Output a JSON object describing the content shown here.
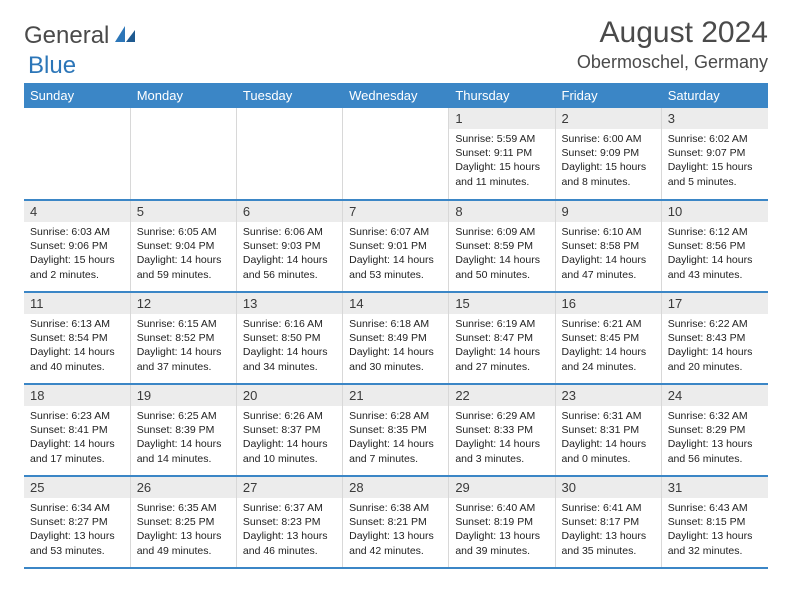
{
  "logo": {
    "text_a": "General",
    "text_b": "Blue"
  },
  "title": "August 2024",
  "location": "Obermoschel, Germany",
  "colors": {
    "header_bg": "#3b86c6",
    "header_text": "#ffffff",
    "day_num_bg": "#ececec",
    "row_border": "#3b86c6",
    "cell_border": "#d8d8d8",
    "logo_gray": "#4a4a4a",
    "logo_blue": "#2c76b8"
  },
  "weekdays": [
    "Sunday",
    "Monday",
    "Tuesday",
    "Wednesday",
    "Thursday",
    "Friday",
    "Saturday"
  ],
  "weeks": [
    [
      null,
      null,
      null,
      null,
      {
        "n": "1",
        "sunrise": "Sunrise: 5:59 AM",
        "sunset": "Sunset: 9:11 PM",
        "daylight": "Daylight: 15 hours and 11 minutes."
      },
      {
        "n": "2",
        "sunrise": "Sunrise: 6:00 AM",
        "sunset": "Sunset: 9:09 PM",
        "daylight": "Daylight: 15 hours and 8 minutes."
      },
      {
        "n": "3",
        "sunrise": "Sunrise: 6:02 AM",
        "sunset": "Sunset: 9:07 PM",
        "daylight": "Daylight: 15 hours and 5 minutes."
      }
    ],
    [
      {
        "n": "4",
        "sunrise": "Sunrise: 6:03 AM",
        "sunset": "Sunset: 9:06 PM",
        "daylight": "Daylight: 15 hours and 2 minutes."
      },
      {
        "n": "5",
        "sunrise": "Sunrise: 6:05 AM",
        "sunset": "Sunset: 9:04 PM",
        "daylight": "Daylight: 14 hours and 59 minutes."
      },
      {
        "n": "6",
        "sunrise": "Sunrise: 6:06 AM",
        "sunset": "Sunset: 9:03 PM",
        "daylight": "Daylight: 14 hours and 56 minutes."
      },
      {
        "n": "7",
        "sunrise": "Sunrise: 6:07 AM",
        "sunset": "Sunset: 9:01 PM",
        "daylight": "Daylight: 14 hours and 53 minutes."
      },
      {
        "n": "8",
        "sunrise": "Sunrise: 6:09 AM",
        "sunset": "Sunset: 8:59 PM",
        "daylight": "Daylight: 14 hours and 50 minutes."
      },
      {
        "n": "9",
        "sunrise": "Sunrise: 6:10 AM",
        "sunset": "Sunset: 8:58 PM",
        "daylight": "Daylight: 14 hours and 47 minutes."
      },
      {
        "n": "10",
        "sunrise": "Sunrise: 6:12 AM",
        "sunset": "Sunset: 8:56 PM",
        "daylight": "Daylight: 14 hours and 43 minutes."
      }
    ],
    [
      {
        "n": "11",
        "sunrise": "Sunrise: 6:13 AM",
        "sunset": "Sunset: 8:54 PM",
        "daylight": "Daylight: 14 hours and 40 minutes."
      },
      {
        "n": "12",
        "sunrise": "Sunrise: 6:15 AM",
        "sunset": "Sunset: 8:52 PM",
        "daylight": "Daylight: 14 hours and 37 minutes."
      },
      {
        "n": "13",
        "sunrise": "Sunrise: 6:16 AM",
        "sunset": "Sunset: 8:50 PM",
        "daylight": "Daylight: 14 hours and 34 minutes."
      },
      {
        "n": "14",
        "sunrise": "Sunrise: 6:18 AM",
        "sunset": "Sunset: 8:49 PM",
        "daylight": "Daylight: 14 hours and 30 minutes."
      },
      {
        "n": "15",
        "sunrise": "Sunrise: 6:19 AM",
        "sunset": "Sunset: 8:47 PM",
        "daylight": "Daylight: 14 hours and 27 minutes."
      },
      {
        "n": "16",
        "sunrise": "Sunrise: 6:21 AM",
        "sunset": "Sunset: 8:45 PM",
        "daylight": "Daylight: 14 hours and 24 minutes."
      },
      {
        "n": "17",
        "sunrise": "Sunrise: 6:22 AM",
        "sunset": "Sunset: 8:43 PM",
        "daylight": "Daylight: 14 hours and 20 minutes."
      }
    ],
    [
      {
        "n": "18",
        "sunrise": "Sunrise: 6:23 AM",
        "sunset": "Sunset: 8:41 PM",
        "daylight": "Daylight: 14 hours and 17 minutes."
      },
      {
        "n": "19",
        "sunrise": "Sunrise: 6:25 AM",
        "sunset": "Sunset: 8:39 PM",
        "daylight": "Daylight: 14 hours and 14 minutes."
      },
      {
        "n": "20",
        "sunrise": "Sunrise: 6:26 AM",
        "sunset": "Sunset: 8:37 PM",
        "daylight": "Daylight: 14 hours and 10 minutes."
      },
      {
        "n": "21",
        "sunrise": "Sunrise: 6:28 AM",
        "sunset": "Sunset: 8:35 PM",
        "daylight": "Daylight: 14 hours and 7 minutes."
      },
      {
        "n": "22",
        "sunrise": "Sunrise: 6:29 AM",
        "sunset": "Sunset: 8:33 PM",
        "daylight": "Daylight: 14 hours and 3 minutes."
      },
      {
        "n": "23",
        "sunrise": "Sunrise: 6:31 AM",
        "sunset": "Sunset: 8:31 PM",
        "daylight": "Daylight: 14 hours and 0 minutes."
      },
      {
        "n": "24",
        "sunrise": "Sunrise: 6:32 AM",
        "sunset": "Sunset: 8:29 PM",
        "daylight": "Daylight: 13 hours and 56 minutes."
      }
    ],
    [
      {
        "n": "25",
        "sunrise": "Sunrise: 6:34 AM",
        "sunset": "Sunset: 8:27 PM",
        "daylight": "Daylight: 13 hours and 53 minutes."
      },
      {
        "n": "26",
        "sunrise": "Sunrise: 6:35 AM",
        "sunset": "Sunset: 8:25 PM",
        "daylight": "Daylight: 13 hours and 49 minutes."
      },
      {
        "n": "27",
        "sunrise": "Sunrise: 6:37 AM",
        "sunset": "Sunset: 8:23 PM",
        "daylight": "Daylight: 13 hours and 46 minutes."
      },
      {
        "n": "28",
        "sunrise": "Sunrise: 6:38 AM",
        "sunset": "Sunset: 8:21 PM",
        "daylight": "Daylight: 13 hours and 42 minutes."
      },
      {
        "n": "29",
        "sunrise": "Sunrise: 6:40 AM",
        "sunset": "Sunset: 8:19 PM",
        "daylight": "Daylight: 13 hours and 39 minutes."
      },
      {
        "n": "30",
        "sunrise": "Sunrise: 6:41 AM",
        "sunset": "Sunset: 8:17 PM",
        "daylight": "Daylight: 13 hours and 35 minutes."
      },
      {
        "n": "31",
        "sunrise": "Sunrise: 6:43 AM",
        "sunset": "Sunset: 8:15 PM",
        "daylight": "Daylight: 13 hours and 32 minutes."
      }
    ]
  ]
}
